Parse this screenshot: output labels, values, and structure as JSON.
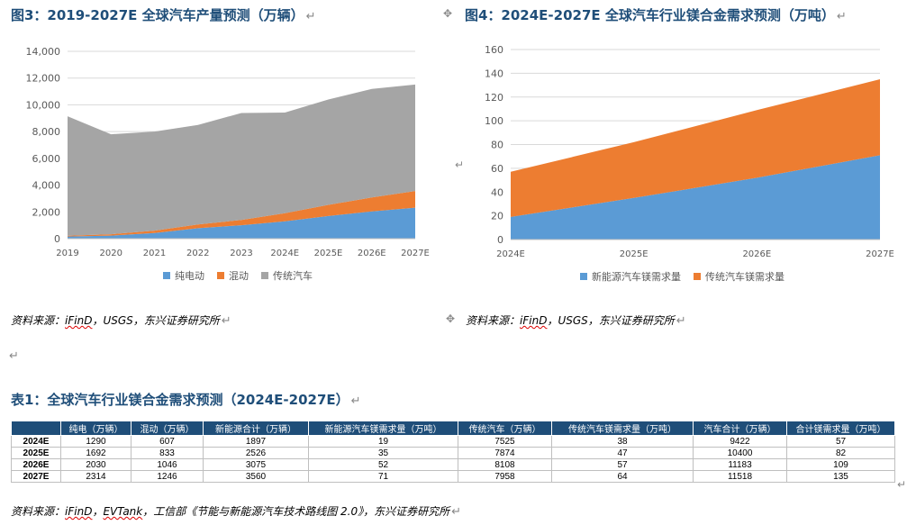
{
  "fig3": {
    "title": "图3：2019-2027E 全球汽车产量预测（万辆）"
  },
  "fig4": {
    "title": "图4：2024E-2027E 全球汽车行业镁合金需求预测（万吨）"
  },
  "return_mark": "↵",
  "source1": {
    "prefix": "资料来源：",
    "ifind": "iFinD",
    "rest": "，USGS，东兴证券研究所"
  },
  "source2": {
    "prefix": "资料来源：",
    "ifind": "iFinD",
    "sep": "，",
    "evtank": "EVTank",
    "rest": "，工信部《节能与新能源汽车技术路线图 2.0》，东兴证券研究所"
  },
  "table": {
    "title": "表1：全球汽车行业镁合金需求预测（2024E-2027E）",
    "headers": [
      "",
      "纯电（万辆）",
      "混动（万辆）",
      "新能源合计（万辆）",
      "新能源汽车镁需求量（万吨）",
      "传统汽车（万辆）",
      "传统汽车镁需求量（万吨）",
      "汽车合计（万辆）",
      "合计镁需求量（万吨）"
    ],
    "rows": [
      [
        "2024E",
        "1290",
        "607",
        "1897",
        "19",
        "7525",
        "38",
        "9422",
        "57"
      ],
      [
        "2025E",
        "1692",
        "833",
        "2526",
        "35",
        "7874",
        "47",
        "10400",
        "82"
      ],
      [
        "2026E",
        "2030",
        "1046",
        "3075",
        "52",
        "8108",
        "57",
        "11183",
        "109"
      ],
      [
        "2027E",
        "2314",
        "1246",
        "3560",
        "71",
        "7958",
        "64",
        "11518",
        "135"
      ]
    ]
  },
  "chart_data": [
    {
      "type": "area",
      "stacked": true,
      "x": [
        "2019",
        "2020",
        "2021",
        "2022",
        "2023",
        "2024E",
        "2025E",
        "2026E",
        "2027E"
      ],
      "series": [
        {
          "name": "纯电动",
          "color": "#5b9bd5",
          "values": [
            160,
            230,
            420,
            780,
            1000,
            1290,
            1692,
            2030,
            2314
          ]
        },
        {
          "name": "混动",
          "color": "#ed7d31",
          "values": [
            60,
            100,
            180,
            280,
            400,
            607,
            833,
            1046,
            1246
          ]
        },
        {
          "name": "传统汽车",
          "color": "#a5a5a5",
          "values": [
            8930,
            7470,
            7400,
            7440,
            7990,
            7525,
            7874,
            8108,
            7958
          ]
        }
      ],
      "ylim": [
        0,
        14000
      ],
      "yticks": [
        "0",
        "2,000",
        "4,000",
        "6,000",
        "8,000",
        "10,000",
        "12,000",
        "14,000"
      ],
      "grid": true,
      "legend": "bottom"
    },
    {
      "type": "area",
      "stacked": true,
      "x": [
        "2024E",
        "2025E",
        "2026E",
        "2027E"
      ],
      "series": [
        {
          "name": "新能源汽车镁需求量",
          "color": "#5b9bd5",
          "values": [
            19,
            35,
            52,
            71
          ]
        },
        {
          "name": "传统汽车镁需求量",
          "color": "#ed7d31",
          "values": [
            38,
            47,
            57,
            64
          ]
        }
      ],
      "ylim": [
        0,
        160
      ],
      "yticks": [
        "0",
        "20",
        "40",
        "60",
        "80",
        "100",
        "120",
        "140",
        "160"
      ],
      "grid": true,
      "legend": "bottom"
    }
  ]
}
